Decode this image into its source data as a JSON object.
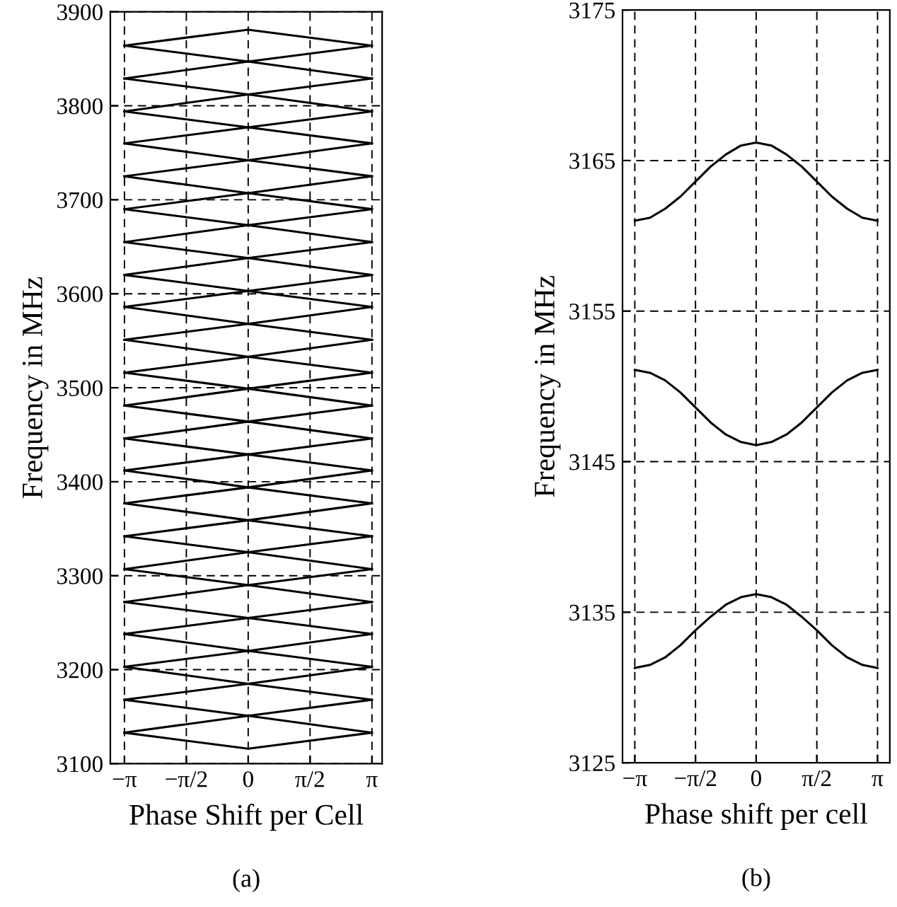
{
  "chart_data": [
    {
      "type": "line",
      "xlabel": "Phase Shift per Cell",
      "ylabel": "Frequency in MHz",
      "annotations": [
        "(a)"
      ],
      "xlim": [
        -3.5,
        3.4
      ],
      "ylim": [
        3100,
        3900
      ],
      "xticks": [
        {
          "value": -3.1416,
          "label": "−π"
        },
        {
          "value": -1.5708,
          "label": "−π/2"
        },
        {
          "value": 0,
          "label": "0"
        },
        {
          "value": 1.5708,
          "label": "π/2"
        },
        {
          "value": 3.1416,
          "label": "π"
        }
      ],
      "yticks": [
        3100,
        3200,
        3300,
        3400,
        3500,
        3600,
        3700,
        3800,
        3900
      ],
      "grid": true,
      "line_style": "solid",
      "marker": "none",
      "x": [
        -3.1416,
        0,
        3.1416
      ],
      "series": [
        {
          "color": "#000000",
          "values": [
            3133,
            3116,
            3133
          ]
        },
        {
          "color": "#000000",
          "values": [
            3133,
            3151,
            3133
          ]
        },
        {
          "color": "#000000",
          "values": [
            3168,
            3151,
            3168
          ]
        },
        {
          "color": "#000000",
          "values": [
            3168,
            3185,
            3168
          ]
        },
        {
          "color": "#000000",
          "values": [
            3203,
            3185,
            3203
          ]
        },
        {
          "color": "#000000",
          "values": [
            3203,
            3220,
            3203
          ]
        },
        {
          "color": "#000000",
          "values": [
            3238,
            3220,
            3238
          ]
        },
        {
          "color": "#000000",
          "values": [
            3238,
            3255,
            3238
          ]
        },
        {
          "color": "#000000",
          "values": [
            3272,
            3255,
            3272
          ]
        },
        {
          "color": "#000000",
          "values": [
            3272,
            3290,
            3272
          ]
        },
        {
          "color": "#000000",
          "values": [
            3307,
            3290,
            3307
          ]
        },
        {
          "color": "#000000",
          "values": [
            3307,
            3325,
            3307
          ]
        },
        {
          "color": "#000000",
          "values": [
            3342,
            3325,
            3342
          ]
        },
        {
          "color": "#000000",
          "values": [
            3342,
            3359,
            3342
          ]
        },
        {
          "color": "#000000",
          "values": [
            3377,
            3359,
            3377
          ]
        },
        {
          "color": "#000000",
          "values": [
            3377,
            3394,
            3377
          ]
        },
        {
          "color": "#000000",
          "values": [
            3412,
            3394,
            3412
          ]
        },
        {
          "color": "#000000",
          "values": [
            3412,
            3429,
            3412
          ]
        },
        {
          "color": "#000000",
          "values": [
            3446,
            3429,
            3446
          ]
        },
        {
          "color": "#000000",
          "values": [
            3446,
            3464,
            3446
          ]
        },
        {
          "color": "#000000",
          "values": [
            3481,
            3464,
            3481
          ]
        },
        {
          "color": "#000000",
          "values": [
            3481,
            3499,
            3481
          ]
        },
        {
          "color": "#000000",
          "values": [
            3516,
            3499,
            3516
          ]
        },
        {
          "color": "#000000",
          "values": [
            3516,
            3533,
            3516
          ]
        },
        {
          "color": "#000000",
          "values": [
            3551,
            3533,
            3551
          ]
        },
        {
          "color": "#000000",
          "values": [
            3551,
            3568,
            3551
          ]
        },
        {
          "color": "#000000",
          "values": [
            3586,
            3568,
            3586
          ]
        },
        {
          "color": "#000000",
          "values": [
            3586,
            3603,
            3586
          ]
        },
        {
          "color": "#000000",
          "values": [
            3620,
            3603,
            3620
          ]
        },
        {
          "color": "#000000",
          "values": [
            3620,
            3638,
            3620
          ]
        },
        {
          "color": "#000000",
          "values": [
            3655,
            3638,
            3655
          ]
        },
        {
          "color": "#000000",
          "values": [
            3655,
            3673,
            3655
          ]
        },
        {
          "color": "#000000",
          "values": [
            3690,
            3673,
            3690
          ]
        },
        {
          "color": "#000000",
          "values": [
            3690,
            3707,
            3690
          ]
        },
        {
          "color": "#000000",
          "values": [
            3725,
            3707,
            3725
          ]
        },
        {
          "color": "#000000",
          "values": [
            3725,
            3742,
            3725
          ]
        },
        {
          "color": "#000000",
          "values": [
            3760,
            3742,
            3760
          ]
        },
        {
          "color": "#000000",
          "values": [
            3760,
            3777,
            3760
          ]
        },
        {
          "color": "#000000",
          "values": [
            3794,
            3777,
            3794
          ]
        },
        {
          "color": "#000000",
          "values": [
            3794,
            3812,
            3794
          ]
        },
        {
          "color": "#000000",
          "values": [
            3829,
            3812,
            3829
          ]
        },
        {
          "color": "#000000",
          "values": [
            3829,
            3847,
            3829
          ]
        },
        {
          "color": "#000000",
          "values": [
            3864,
            3847,
            3864
          ]
        },
        {
          "color": "#000000",
          "values": [
            3864,
            3881,
            3864
          ]
        }
      ]
    },
    {
      "type": "line",
      "xlabel": "Phase shift per cell",
      "ylabel": "Frequency in MHz",
      "annotations": [
        "(b)"
      ],
      "xlim": [
        -3.46,
        3.46
      ],
      "ylim": [
        3125,
        3175
      ],
      "xticks": [
        {
          "value": -3.1416,
          "label": "−π"
        },
        {
          "value": -1.5708,
          "label": "−π/2"
        },
        {
          "value": 0,
          "label": "0"
        },
        {
          "value": 1.5708,
          "label": "π/2"
        },
        {
          "value": 3.1416,
          "label": "π"
        }
      ],
      "yticks": [
        3125,
        3135,
        3145,
        3155,
        3165,
        3175
      ],
      "grid": true,
      "line_style": "solid",
      "marker": "none",
      "x": [
        -3.1416,
        -2.7489,
        -2.3562,
        -1.9635,
        -1.5708,
        -1.1781,
        -0.7854,
        -0.3927,
        0,
        0.3927,
        0.7854,
        1.1781,
        1.5708,
        1.9635,
        2.3562,
        2.7489,
        3.1416
      ],
      "series": [
        {
          "color": "#000000",
          "values": [
            3161.0,
            3161.2,
            3161.8,
            3162.6,
            3163.6,
            3164.6,
            3165.4,
            3166.0,
            3166.2,
            3166.0,
            3165.4,
            3164.6,
            3163.6,
            3162.6,
            3161.8,
            3161.2,
            3161.0
          ]
        },
        {
          "color": "#000000",
          "values": [
            3151.1,
            3150.9,
            3150.4,
            3149.6,
            3148.6,
            3147.6,
            3146.8,
            3146.3,
            3146.1,
            3146.3,
            3146.8,
            3147.6,
            3148.6,
            3149.6,
            3150.4,
            3150.9,
            3151.1
          ]
        },
        {
          "color": "#000000",
          "values": [
            3131.3,
            3131.5,
            3132.0,
            3132.8,
            3133.8,
            3134.7,
            3135.5,
            3136.0,
            3136.2,
            3136.0,
            3135.5,
            3134.7,
            3133.8,
            3132.8,
            3132.0,
            3131.5,
            3131.3
          ]
        }
      ]
    }
  ]
}
